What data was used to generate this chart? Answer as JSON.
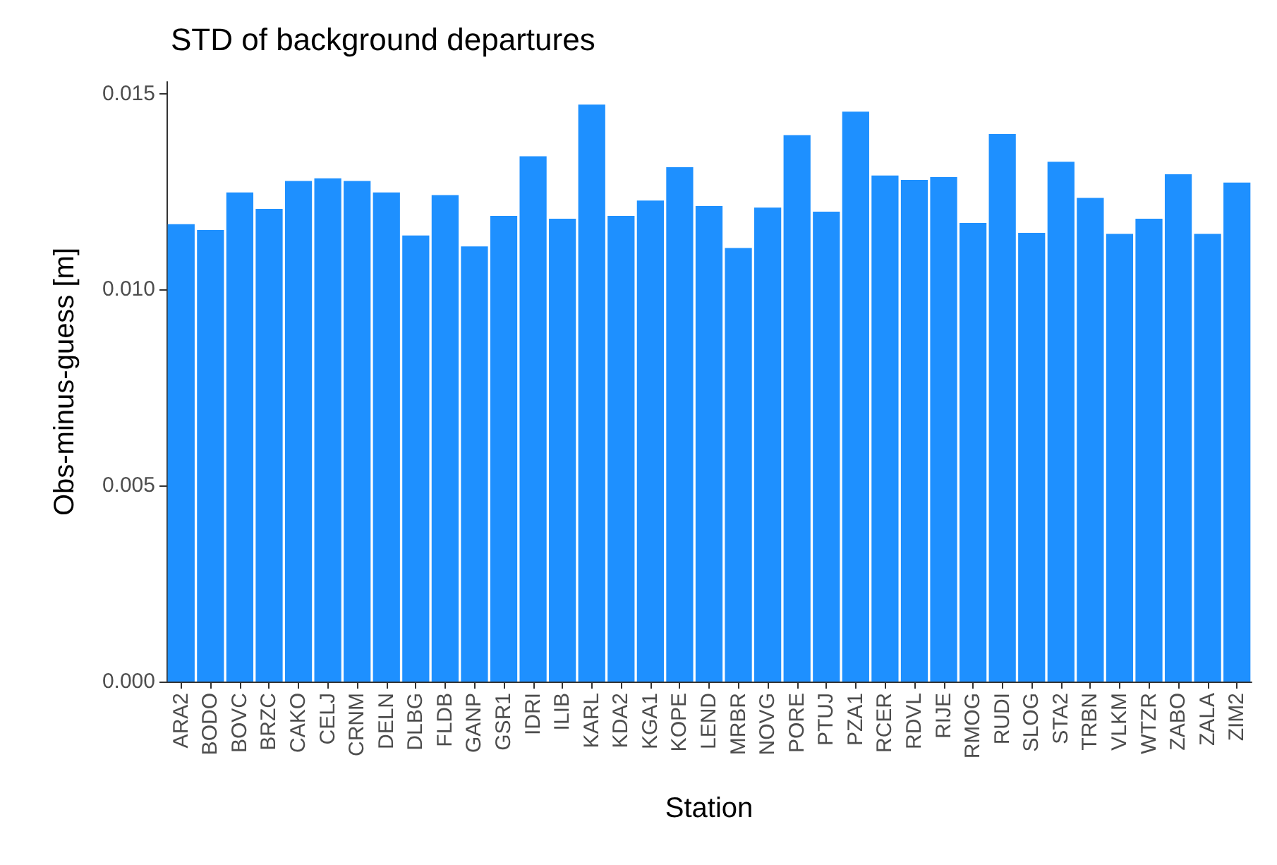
{
  "chart_data": {
    "type": "bar",
    "title": "STD of background departures",
    "xlabel": "Station",
    "ylabel": "Obs-minus-guess [m]",
    "categories": [
      "ARA2",
      "BODO",
      "BOVC",
      "BRZC",
      "CAKO",
      "CELJ",
      "CRNM",
      "DELN",
      "DLBG",
      "FLDB",
      "GANP",
      "GSR1",
      "IDRI",
      "ILIB",
      "KARL",
      "KDA2",
      "KGA1",
      "KOPE",
      "LEND",
      "MRBR",
      "NOVG",
      "PORE",
      "PTUJ",
      "PZA1",
      "RCER",
      "RDVL",
      "RIJE",
      "RMOG",
      "RUDI",
      "SLOG",
      "STA2",
      "TRBN",
      "VLKM",
      "WTZR",
      "ZABO",
      "ZALA",
      "ZIM2"
    ],
    "values": [
      0.01167,
      0.01152,
      0.01248,
      0.01206,
      0.01277,
      0.01284,
      0.01277,
      0.01248,
      0.01138,
      0.01241,
      0.0111,
      0.01188,
      0.0134,
      0.01181,
      0.01472,
      0.01188,
      0.01227,
      0.01312,
      0.01213,
      0.01106,
      0.01209,
      0.01394,
      0.01199,
      0.01454,
      0.01291,
      0.0128,
      0.01287,
      0.0117,
      0.01397,
      0.01145,
      0.01326,
      0.01234,
      0.01142,
      0.01181,
      0.01294,
      0.01142,
      0.01273
    ],
    "color": "#1e90ff",
    "ylim": [
      0,
      0.0153
    ],
    "yticks": [
      {
        "value": 0,
        "label": "0.000"
      },
      {
        "value": 0.005,
        "label": "0.005"
      },
      {
        "value": 0.01,
        "label": "0.010"
      },
      {
        "value": 0.015,
        "label": "0.015"
      }
    ],
    "grid": false
  }
}
